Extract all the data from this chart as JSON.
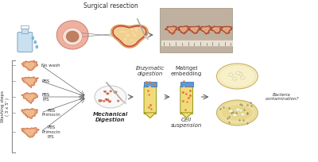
{
  "bg_color": "#ffffff",
  "wash_labels": [
    "No wash",
    "PBS",
    "PBS\nP/S",
    "PBS\nPrimocin",
    "PBS\nPrimocin\nP/S"
  ],
  "wash_steps_label": "Washing steps\n( 3 x 5' )",
  "surgical_label": "Surgical resection",
  "mech_label": "Mechanical\nDigestion",
  "enzyme_label": "Enzymatic\ndigestion",
  "matrigel_label": "Matrigel\nembedding",
  "cell_label": "Cell\nsuspension",
  "bacteria_label": "Bacteria\ncontamination?",
  "tissue_fill": "#e8a87c",
  "tissue_outline": "#cc7755",
  "tissue_inner": "#f5c89a",
  "tube_body_color": "#f0dc78",
  "tube_cap_color": "#5b9bd5",
  "tube_outline": "#888800",
  "petri_fill": "#f5e8a0",
  "petri_outline": "#c8b060",
  "organoid_fill": "#f8f4e0",
  "organoid_outline": "#d0c888",
  "petri_clean_fill": "#f8f0c8",
  "petri_dirty_fill": "#ede0a0",
  "mech_petri_fill": "#f8f8f8",
  "mech_petri_outline": "#cccccc",
  "arrow_color": "#666666",
  "text_color": "#333333",
  "bracket_color": "#888888",
  "bottle_fill": "#c8e0f0",
  "bottle_outline": "#7799bb",
  "drop_color": "#88bbdd",
  "colon_fill": "#f0b0a0",
  "colon_outline": "#cc8877",
  "colon_inner_fill": "#b07060",
  "tissue_large_fill": "#f0d090",
  "tissue_large_outline": "#cc9944",
  "photo_bg": "#c8b8a0",
  "scalpel_color": "#aaaaaa",
  "label_fontsize": 5.5,
  "small_fontsize": 4.5,
  "tiny_fontsize": 4.0
}
